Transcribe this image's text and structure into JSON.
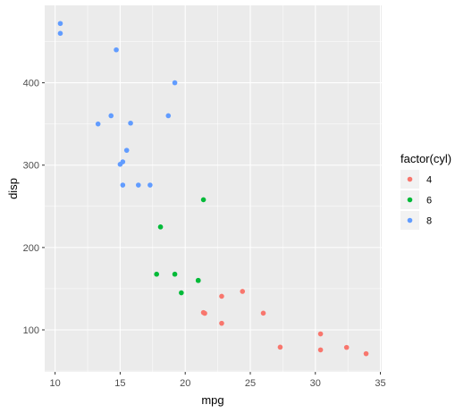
{
  "chart_data": {
    "type": "scatter",
    "xlabel": "mpg",
    "ylabel": "disp",
    "xlim": [
      9.2,
      35.1
    ],
    "ylim": [
      49,
      494
    ],
    "x_ticks": [
      10,
      15,
      20,
      25,
      30,
      35
    ],
    "y_ticks": [
      100,
      200,
      300,
      400
    ],
    "grid": true,
    "legend": {
      "title": "factor(cyl)",
      "position": "right"
    },
    "series": [
      {
        "name": "4",
        "color": "#F8766D",
        "points": [
          [
            22.8,
            108
          ],
          [
            24.4,
            146.7
          ],
          [
            22.8,
            140.8
          ],
          [
            32.4,
            78.7
          ],
          [
            30.4,
            75.7
          ],
          [
            33.9,
            71.1
          ],
          [
            21.5,
            120.1
          ],
          [
            27.3,
            79
          ],
          [
            26.0,
            120.3
          ],
          [
            30.4,
            95.1
          ],
          [
            21.4,
            121
          ]
        ]
      },
      {
        "name": "6",
        "color": "#00BA38",
        "points": [
          [
            21.0,
            160
          ],
          [
            21.0,
            160
          ],
          [
            21.4,
            258
          ],
          [
            18.1,
            225
          ],
          [
            19.2,
            167.6
          ],
          [
            17.8,
            167.6
          ],
          [
            19.7,
            145
          ]
        ]
      },
      {
        "name": "8",
        "color": "#619CFF",
        "points": [
          [
            18.7,
            360
          ],
          [
            14.3,
            360
          ],
          [
            16.4,
            275.8
          ],
          [
            17.3,
            275.8
          ],
          [
            15.2,
            275.8
          ],
          [
            10.4,
            472
          ],
          [
            10.4,
            460
          ],
          [
            14.7,
            440
          ],
          [
            15.5,
            318
          ],
          [
            15.2,
            304
          ],
          [
            13.3,
            350
          ],
          [
            19.2,
            400
          ],
          [
            15.8,
            351
          ],
          [
            15.0,
            301
          ]
        ]
      }
    ]
  }
}
